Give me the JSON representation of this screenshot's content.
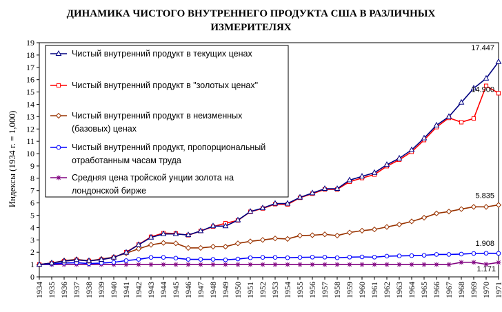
{
  "chart_data": {
    "type": "line",
    "title": [
      "ДИНАМИКА ЧИСТОГО ВНУТРЕННЕГО ПРОДУКТА США В РАЗЛИЧНЫХ",
      "ИЗМЕРИТЕЛЯХ"
    ],
    "ylabel": "Индексы (1934 г. = 1,000)",
    "xlabel": "",
    "ylim": [
      0,
      19
    ],
    "yticks": [
      0,
      1,
      2,
      3,
      4,
      5,
      6,
      7,
      8,
      9,
      10,
      11,
      12,
      13,
      14,
      15,
      16,
      17,
      18,
      19
    ],
    "categories": [
      "1934",
      "1935",
      "1936",
      "1937",
      "1938",
      "1939",
      "1940",
      "1941",
      "1942",
      "1943",
      "1944",
      "1945",
      "1946",
      "1947",
      "1948",
      "1949",
      "1950",
      "1951",
      "1952",
      "1953",
      "1954",
      "1955",
      "1956",
      "1957",
      "1958",
      "1959",
      "1960",
      "1961",
      "1962",
      "1963",
      "1964",
      "1965",
      "1966",
      "1967",
      "1968",
      "1969",
      "1970",
      "1971"
    ],
    "series": [
      {
        "name": "Чистый внутренний продукт в текущих ценах",
        "legend_lines": [
          "Чистый внутренний продукт в текущих ценах"
        ],
        "color": "#000080",
        "marker": "triangle",
        "values": [
          1.0,
          1.12,
          1.28,
          1.38,
          1.3,
          1.4,
          1.58,
          1.98,
          2.6,
          3.2,
          3.48,
          3.48,
          3.4,
          3.72,
          4.12,
          4.12,
          4.6,
          5.3,
          5.58,
          5.95,
          5.95,
          6.45,
          6.8,
          7.15,
          7.15,
          7.85,
          8.15,
          8.45,
          9.1,
          9.62,
          10.3,
          11.25,
          12.3,
          13.0,
          14.15,
          15.3,
          16.1,
          17.447
        ]
      },
      {
        "name": "Чистый внутренний продукт в \"золотых ценах\"",
        "legend_lines": [
          "Чистый внутренний продукт в \"золотых ценах\""
        ],
        "color": "#ff0000",
        "marker": "square",
        "values": [
          1.0,
          1.12,
          1.28,
          1.38,
          1.3,
          1.4,
          1.58,
          2.0,
          2.62,
          3.25,
          3.55,
          3.52,
          3.38,
          3.72,
          4.08,
          4.35,
          4.58,
          5.28,
          5.55,
          5.9,
          5.88,
          6.42,
          6.75,
          7.1,
          7.1,
          7.72,
          8.02,
          8.3,
          8.98,
          9.5,
          10.15,
          11.1,
          12.15,
          12.9,
          12.55,
          12.85,
          15.5,
          14.9
        ]
      },
      {
        "name": "Чистый внутренний продукт в неизменных (базовых) ценах",
        "legend_lines": [
          "Чистый внутренний продукт в неизменных",
          "(базовых) ценах"
        ],
        "color": "#993300",
        "marker": "diamond",
        "values": [
          1.0,
          1.12,
          1.32,
          1.42,
          1.3,
          1.45,
          1.6,
          1.92,
          2.28,
          2.6,
          2.76,
          2.72,
          2.35,
          2.35,
          2.45,
          2.45,
          2.72,
          2.88,
          3.0,
          3.12,
          3.08,
          3.35,
          3.38,
          3.45,
          3.35,
          3.6,
          3.75,
          3.85,
          4.05,
          4.25,
          4.5,
          4.8,
          5.15,
          5.3,
          5.5,
          5.68,
          5.68,
          5.835
        ]
      },
      {
        "name": "Чистый внутренний продукт, пропорциональный отработанным часам труда",
        "legend_lines": [
          "Чистый внутренний продукт, пропорциональный",
          "отработанным часам труда"
        ],
        "color": "#0000ff",
        "marker": "circle",
        "values": [
          1.0,
          1.05,
          1.12,
          1.15,
          1.08,
          1.12,
          1.18,
          1.32,
          1.42,
          1.58,
          1.58,
          1.52,
          1.42,
          1.42,
          1.42,
          1.38,
          1.45,
          1.55,
          1.58,
          1.58,
          1.55,
          1.58,
          1.6,
          1.6,
          1.55,
          1.6,
          1.62,
          1.6,
          1.68,
          1.7,
          1.72,
          1.75,
          1.82,
          1.82,
          1.85,
          1.9,
          1.92,
          1.908
        ]
      },
      {
        "name": "Средняя цена тройской унции золота на лондонской бирже",
        "legend_lines": [
          "Средняя цена тройской унции золота на",
          "лондонской бирже"
        ],
        "color": "#800080",
        "marker": "star",
        "values": [
          1.0,
          1.0,
          1.0,
          1.0,
          1.0,
          1.0,
          1.0,
          1.0,
          1.0,
          1.0,
          1.0,
          1.0,
          1.0,
          1.0,
          1.0,
          1.0,
          1.0,
          1.0,
          1.0,
          1.0,
          1.0,
          1.0,
          1.0,
          1.0,
          1.0,
          1.0,
          1.0,
          1.0,
          1.0,
          1.0,
          1.0,
          1.0,
          1.0,
          1.0,
          1.18,
          1.18,
          1.02,
          1.171
        ]
      }
    ],
    "annotations": [
      "17.447",
      "14.900",
      "5.835",
      "1.908",
      "1.171"
    ],
    "grid": false,
    "legend": "top-left inside plot"
  }
}
